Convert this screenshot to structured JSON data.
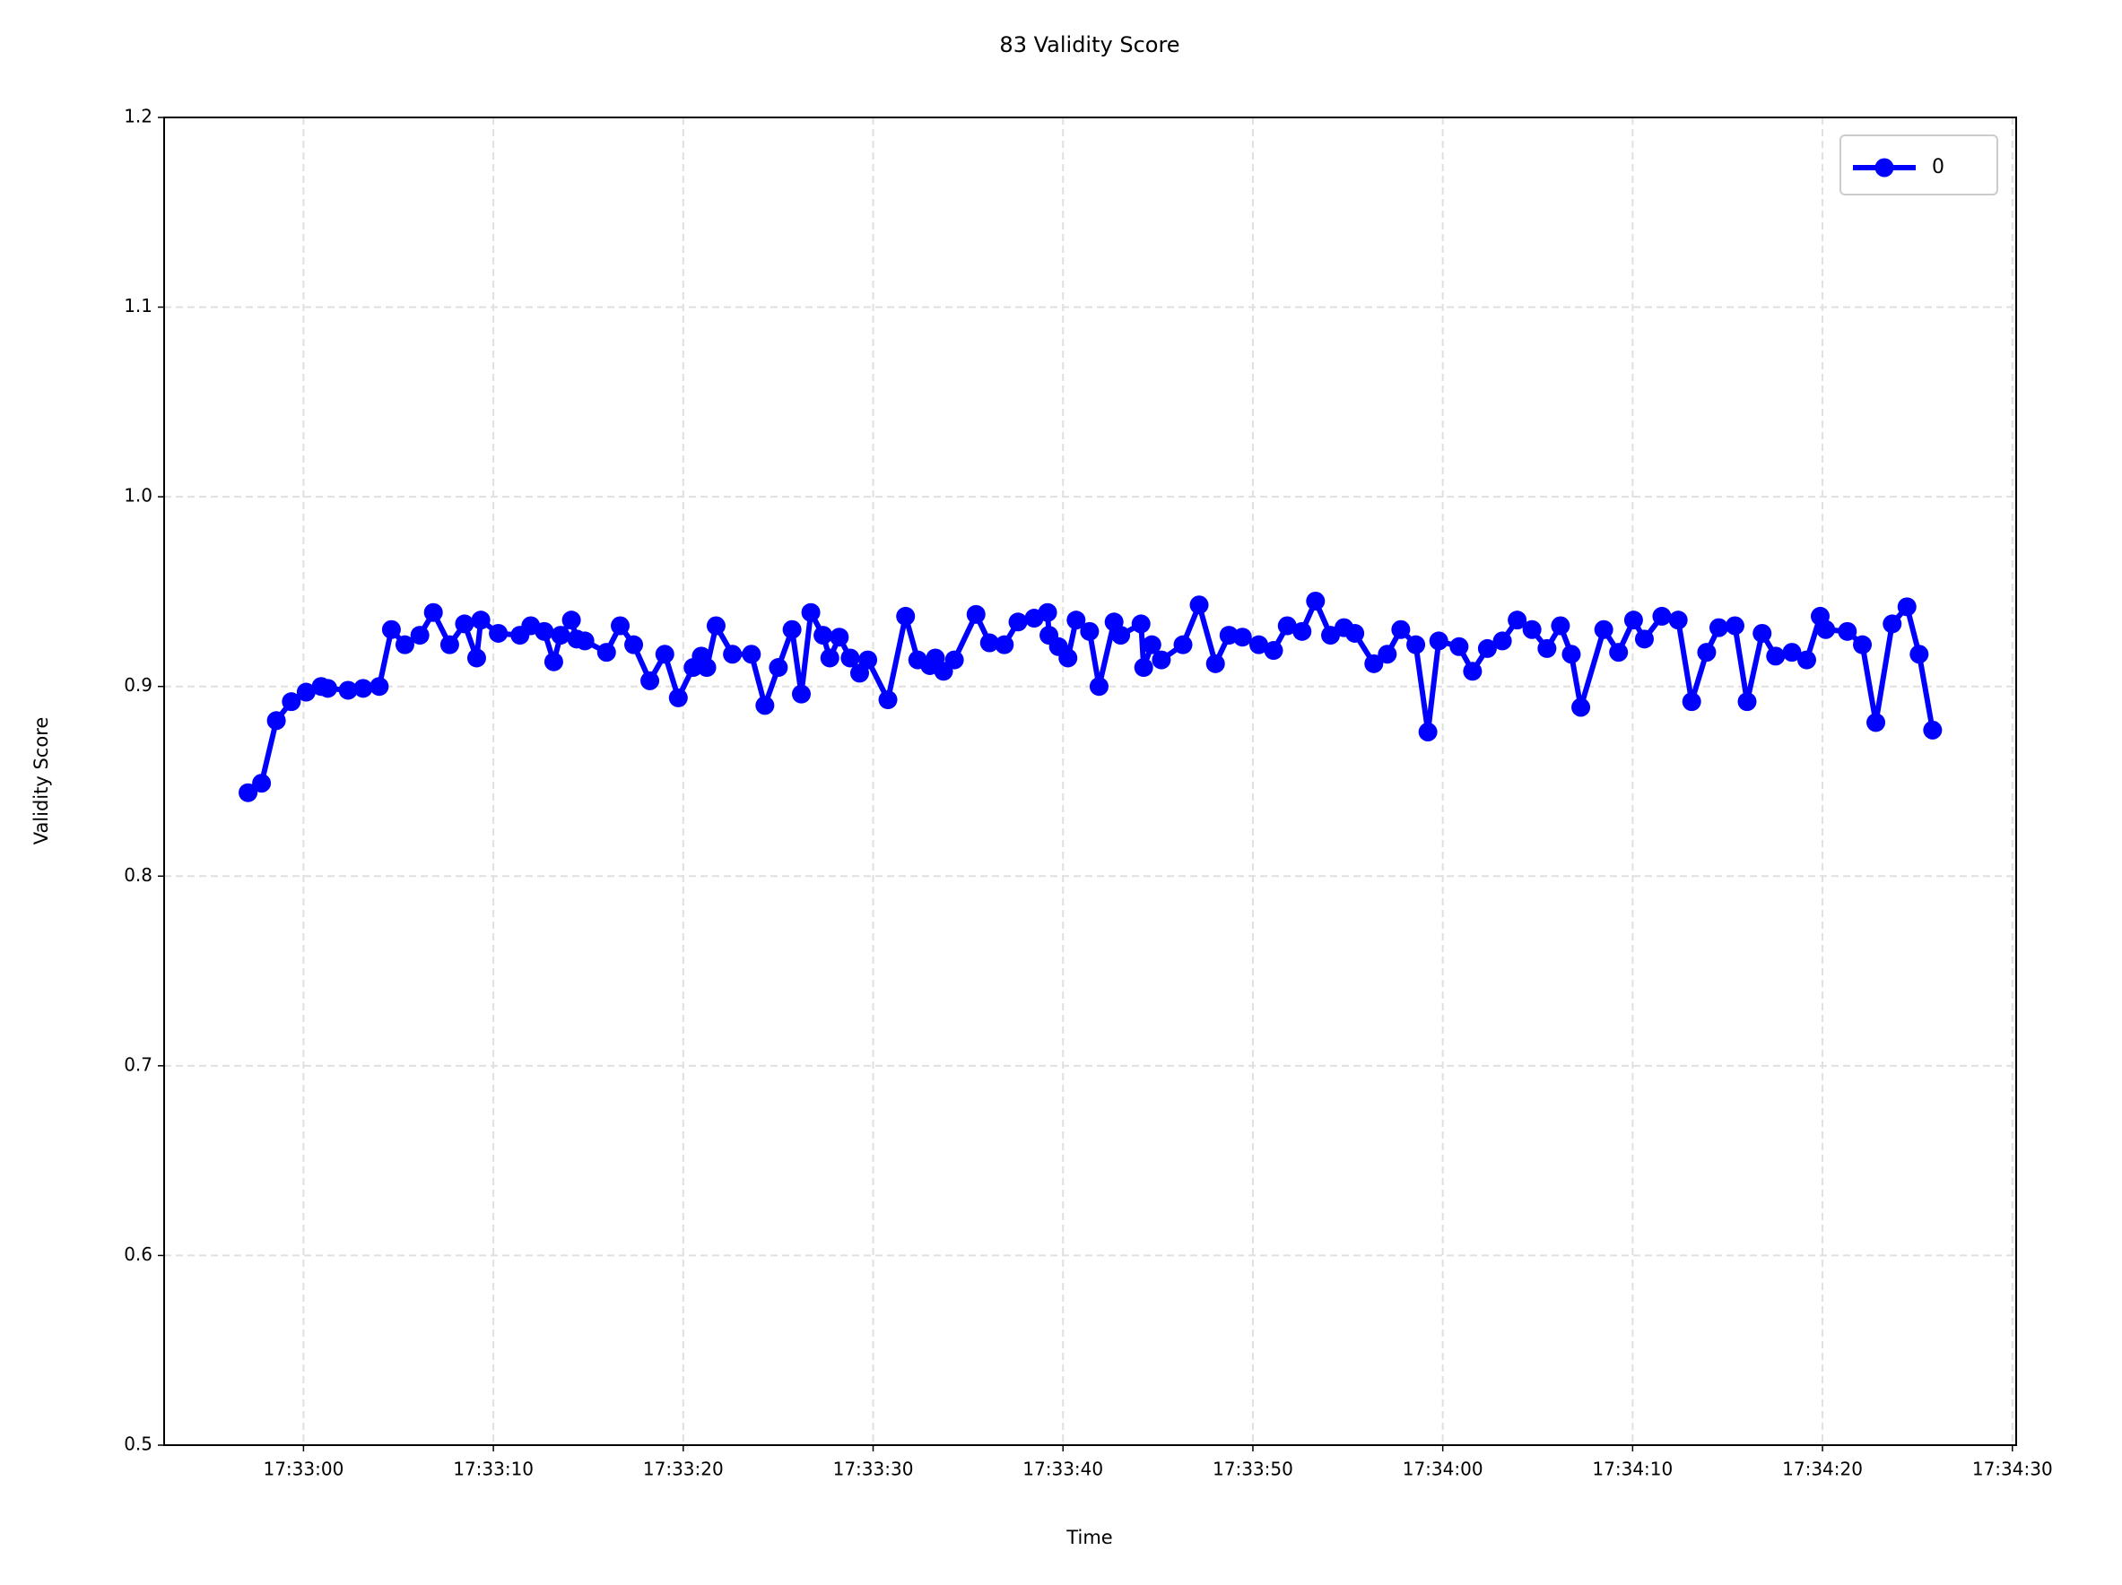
{
  "chart_data": {
    "type": "line",
    "title": "83 Validity Score",
    "xlabel": "Time",
    "ylabel": "Validity Score",
    "x": [
      63177.08,
      63177.79,
      63178.57,
      63179.36,
      63180.14,
      63180.93,
      63181.28,
      63182.35,
      63183.14,
      63183.99,
      63184.63,
      63185.34,
      63186.13,
      63186.84,
      63187.7,
      63188.48,
      63189.12,
      63189.34,
      63190.26,
      63191.4,
      63191.97,
      63192.68,
      63193.18,
      63193.54,
      63194.11,
      63194.39,
      63194.82,
      63195.96,
      63196.68,
      63197.39,
      63198.24,
      63199.03,
      63199.74,
      63200.52,
      63200.95,
      63201.24,
      63201.73,
      63202.59,
      63203.59,
      63204.3,
      63205.01,
      63205.73,
      63206.22,
      63206.72,
      63207.36,
      63207.72,
      63208.22,
      63208.79,
      63209.29,
      63209.72,
      63210.78,
      63211.71,
      63212.35,
      63212.99,
      63213.28,
      63213.71,
      63214.28,
      63215.42,
      63216.13,
      63216.91,
      63217.63,
      63218.48,
      63219.19,
      63219.26,
      63219.76,
      63220.26,
      63220.69,
      63221.4,
      63221.9,
      63222.69,
      63223.04,
      63224.11,
      63224.25,
      63224.68,
      63225.18,
      63226.32,
      63227.17,
      63228.03,
      63228.74,
      63229.45,
      63230.31,
      63231.09,
      63231.81,
      63232.59,
      63233.3,
      63234.09,
      63234.8,
      63235.37,
      63236.37,
      63237.08,
      63237.79,
      63238.58,
      63239.22,
      63239.79,
      63240.86,
      63241.57,
      63242.35,
      63243.14,
      63243.92,
      63244.7,
      63245.49,
      63246.2,
      63246.77,
      63247.27,
      63248.48,
      63249.26,
      63250.05,
      63250.62,
      63251.54,
      63252.4,
      63253.11,
      63253.9,
      63254.54,
      63255.39,
      63256.03,
      63256.82,
      63257.53,
      63258.39,
      63259.17,
      63259.88,
      63260.17,
      63261.31,
      63262.1,
      63262.81,
      63263.67,
      63264.45,
      63265.09,
      63265.8
    ],
    "series": [
      {
        "name": "0",
        "color": "#0000ff",
        "values": [
          0.844,
          0.849,
          0.882,
          0.892,
          0.897,
          0.9,
          0.899,
          0.898,
          0.899,
          0.9,
          0.93,
          0.922,
          0.927,
          0.939,
          0.922,
          0.933,
          0.915,
          0.935,
          0.928,
          0.927,
          0.932,
          0.929,
          0.913,
          0.927,
          0.935,
          0.925,
          0.924,
          0.918,
          0.932,
          0.922,
          0.903,
          0.917,
          0.894,
          0.91,
          0.916,
          0.91,
          0.932,
          0.917,
          0.917,
          0.89,
          0.91,
          0.93,
          0.896,
          0.939,
          0.927,
          0.915,
          0.926,
          0.915,
          0.907,
          0.914,
          0.893,
          0.937,
          0.914,
          0.911,
          0.915,
          0.908,
          0.914,
          0.938,
          0.923,
          0.922,
          0.934,
          0.936,
          0.939,
          0.927,
          0.921,
          0.915,
          0.935,
          0.929,
          0.9,
          0.934,
          0.927,
          0.933,
          0.91,
          0.922,
          0.914,
          0.922,
          0.943,
          0.912,
          0.927,
          0.926,
          0.922,
          0.919,
          0.932,
          0.929,
          0.945,
          0.927,
          0.931,
          0.928,
          0.912,
          0.917,
          0.93,
          0.922,
          0.876,
          0.924,
          0.921,
          0.908,
          0.92,
          0.924,
          0.935,
          0.93,
          0.92,
          0.932,
          0.917,
          0.889,
          0.93,
          0.918,
          0.935,
          0.925,
          0.937,
          0.935,
          0.892,
          0.918,
          0.931,
          0.932,
          0.892,
          0.928,
          0.916,
          0.918,
          0.914,
          0.937,
          0.93,
          0.929,
          0.922,
          0.881,
          0.933,
          0.942,
          0.917,
          0.877
        ]
      }
    ],
    "xlim": [
      63172.66,
      63270.2
    ],
    "xticks": [
      {
        "value": 63180,
        "label": "17:33:00"
      },
      {
        "value": 63190,
        "label": "17:33:10"
      },
      {
        "value": 63200,
        "label": "17:33:20"
      },
      {
        "value": 63210,
        "label": "17:33:30"
      },
      {
        "value": 63220,
        "label": "17:33:40"
      },
      {
        "value": 63230,
        "label": "17:33:50"
      },
      {
        "value": 63240,
        "label": "17:34:00"
      },
      {
        "value": 63250,
        "label": "17:34:10"
      },
      {
        "value": 63260,
        "label": "17:34:20"
      },
      {
        "value": 63270,
        "label": "17:34:30"
      }
    ],
    "ylim": [
      0.5,
      1.2
    ],
    "yticks": [
      0.5,
      0.6,
      0.7,
      0.8,
      0.9,
      {
        "value": 1,
        "label": "1.0"
      },
      1.1,
      1.2
    ],
    "grid": true,
    "legend": "upper right"
  }
}
